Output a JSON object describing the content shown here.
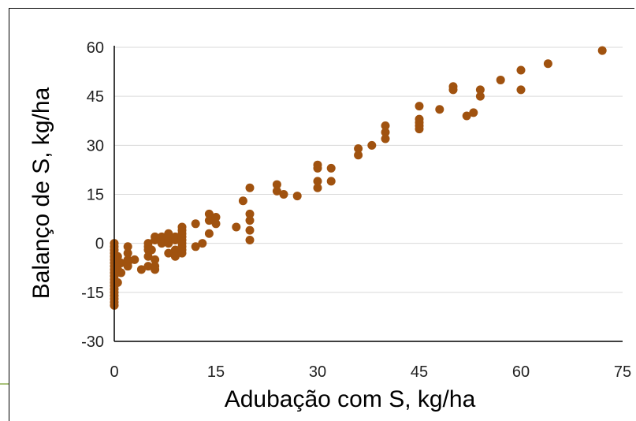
{
  "chart_data": {
    "type": "scatter",
    "title": "",
    "xlabel": "Adubação com S, kg/ha",
    "ylabel": "Balanço de S, kg/ha",
    "xlim": [
      0,
      75
    ],
    "ylim": [
      -30,
      60
    ],
    "x_ticks": [
      "0",
      "15",
      "30",
      "45",
      "60",
      "75"
    ],
    "y_ticks": [
      "60",
      "45",
      "30",
      "15",
      "0",
      "-15",
      "-30"
    ],
    "grid": "horizontal",
    "legend": "none",
    "marker_color": "#a0520f",
    "series": [
      {
        "points": [
          [
            0,
            0
          ],
          [
            0,
            -1
          ],
          [
            0,
            -2
          ],
          [
            0,
            -3
          ],
          [
            0,
            -4
          ],
          [
            0,
            -5
          ],
          [
            0,
            -6
          ],
          [
            0,
            -7
          ],
          [
            0,
            -8
          ],
          [
            0,
            -9
          ],
          [
            0,
            -10
          ],
          [
            0,
            -11
          ],
          [
            0,
            -12
          ],
          [
            0,
            -13
          ],
          [
            0,
            -14
          ],
          [
            0,
            -15
          ],
          [
            0,
            -16
          ],
          [
            0,
            -17
          ],
          [
            0,
            -18
          ],
          [
            0,
            -19
          ],
          [
            0.5,
            -4
          ],
          [
            0.5,
            -8
          ],
          [
            0.5,
            -12
          ],
          [
            1,
            -6
          ],
          [
            1,
            -9
          ],
          [
            2,
            -1
          ],
          [
            2,
            -3
          ],
          [
            2,
            -5
          ],
          [
            2,
            -6
          ],
          [
            2,
            -7
          ],
          [
            3,
            -5
          ],
          [
            4,
            -8
          ],
          [
            5,
            0
          ],
          [
            5,
            -1
          ],
          [
            5,
            -2
          ],
          [
            5,
            -4
          ],
          [
            5,
            -7
          ],
          [
            5.5,
            -2
          ],
          [
            6,
            -5
          ],
          [
            6,
            -7
          ],
          [
            6,
            1
          ],
          [
            6,
            2
          ],
          [
            6,
            -8
          ],
          [
            7,
            0
          ],
          [
            7,
            2
          ],
          [
            8,
            1
          ],
          [
            8,
            3
          ],
          [
            8,
            -3
          ],
          [
            8,
            0
          ],
          [
            9,
            1
          ],
          [
            9,
            2
          ],
          [
            9,
            -2
          ],
          [
            9,
            -4
          ],
          [
            10,
            0
          ],
          [
            10,
            1
          ],
          [
            10,
            2
          ],
          [
            10,
            3
          ],
          [
            10,
            4
          ],
          [
            10,
            5
          ],
          [
            10,
            -1
          ],
          [
            10,
            -2
          ],
          [
            10,
            -3
          ],
          [
            12,
            6
          ],
          [
            12,
            -1
          ],
          [
            13,
            0
          ],
          [
            14,
            3
          ],
          [
            14,
            7
          ],
          [
            14,
            9
          ],
          [
            15,
            6
          ],
          [
            15,
            8
          ],
          [
            18,
            5
          ],
          [
            19,
            13
          ],
          [
            20,
            17
          ],
          [
            20,
            1
          ],
          [
            20,
            4
          ],
          [
            20,
            7
          ],
          [
            20,
            9
          ],
          [
            24,
            18
          ],
          [
            24,
            16
          ],
          [
            25,
            15
          ],
          [
            27,
            14.5
          ],
          [
            30,
            23
          ],
          [
            30,
            24
          ],
          [
            30,
            19
          ],
          [
            30,
            17
          ],
          [
            32,
            23
          ],
          [
            32,
            19
          ],
          [
            36,
            27
          ],
          [
            36,
            29
          ],
          [
            38,
            30
          ],
          [
            40,
            36
          ],
          [
            40,
            34
          ],
          [
            40,
            32
          ],
          [
            45,
            42
          ],
          [
            45,
            38
          ],
          [
            45,
            37
          ],
          [
            45,
            36
          ],
          [
            45,
            35
          ],
          [
            48,
            41
          ],
          [
            50,
            47
          ],
          [
            50,
            48
          ],
          [
            52,
            39
          ],
          [
            53,
            40
          ],
          [
            54,
            45
          ],
          [
            54,
            47
          ],
          [
            57,
            50
          ],
          [
            60,
            53
          ],
          [
            60,
            47
          ],
          [
            64,
            55
          ],
          [
            72,
            59
          ]
        ]
      }
    ]
  }
}
